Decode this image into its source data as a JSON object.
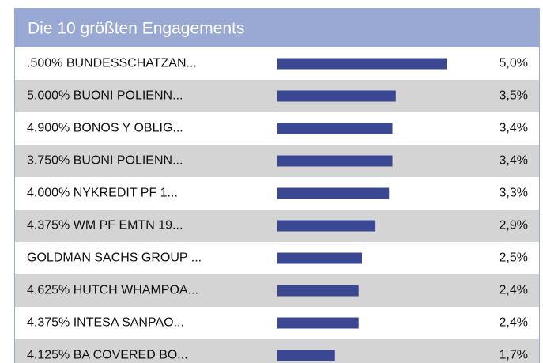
{
  "chart_data": {
    "type": "bar",
    "orientation": "horizontal",
    "title": "Die 10 größten Engagements",
    "categories": [
      ".500% BUNDESSCHATZAN...",
      "5.000% BUONI POLIENN...",
      "4.900% BONOS Y OBLIG...",
      "3.750% BUONI POLIENN...",
      "4.000% NYKREDIT PF 1...",
      "4.375% WM PF EMTN 19...",
      "GOLDMAN SACHS GROUP ...",
      "4.625% HUTCH WHAMPOA...",
      "4.375% INTESA SANPAO...",
      "4.125% BA COVERED BO..."
    ],
    "values": [
      5.0,
      3.5,
      3.4,
      3.4,
      3.3,
      2.9,
      2.5,
      2.4,
      2.4,
      1.7
    ],
    "value_labels": [
      "5,0%",
      "3,5%",
      "3,4%",
      "3,4%",
      "3,3%",
      "2,9%",
      "2,5%",
      "2,4%",
      "2,4%",
      "1,7%"
    ],
    "color": "#3a4893"
  }
}
